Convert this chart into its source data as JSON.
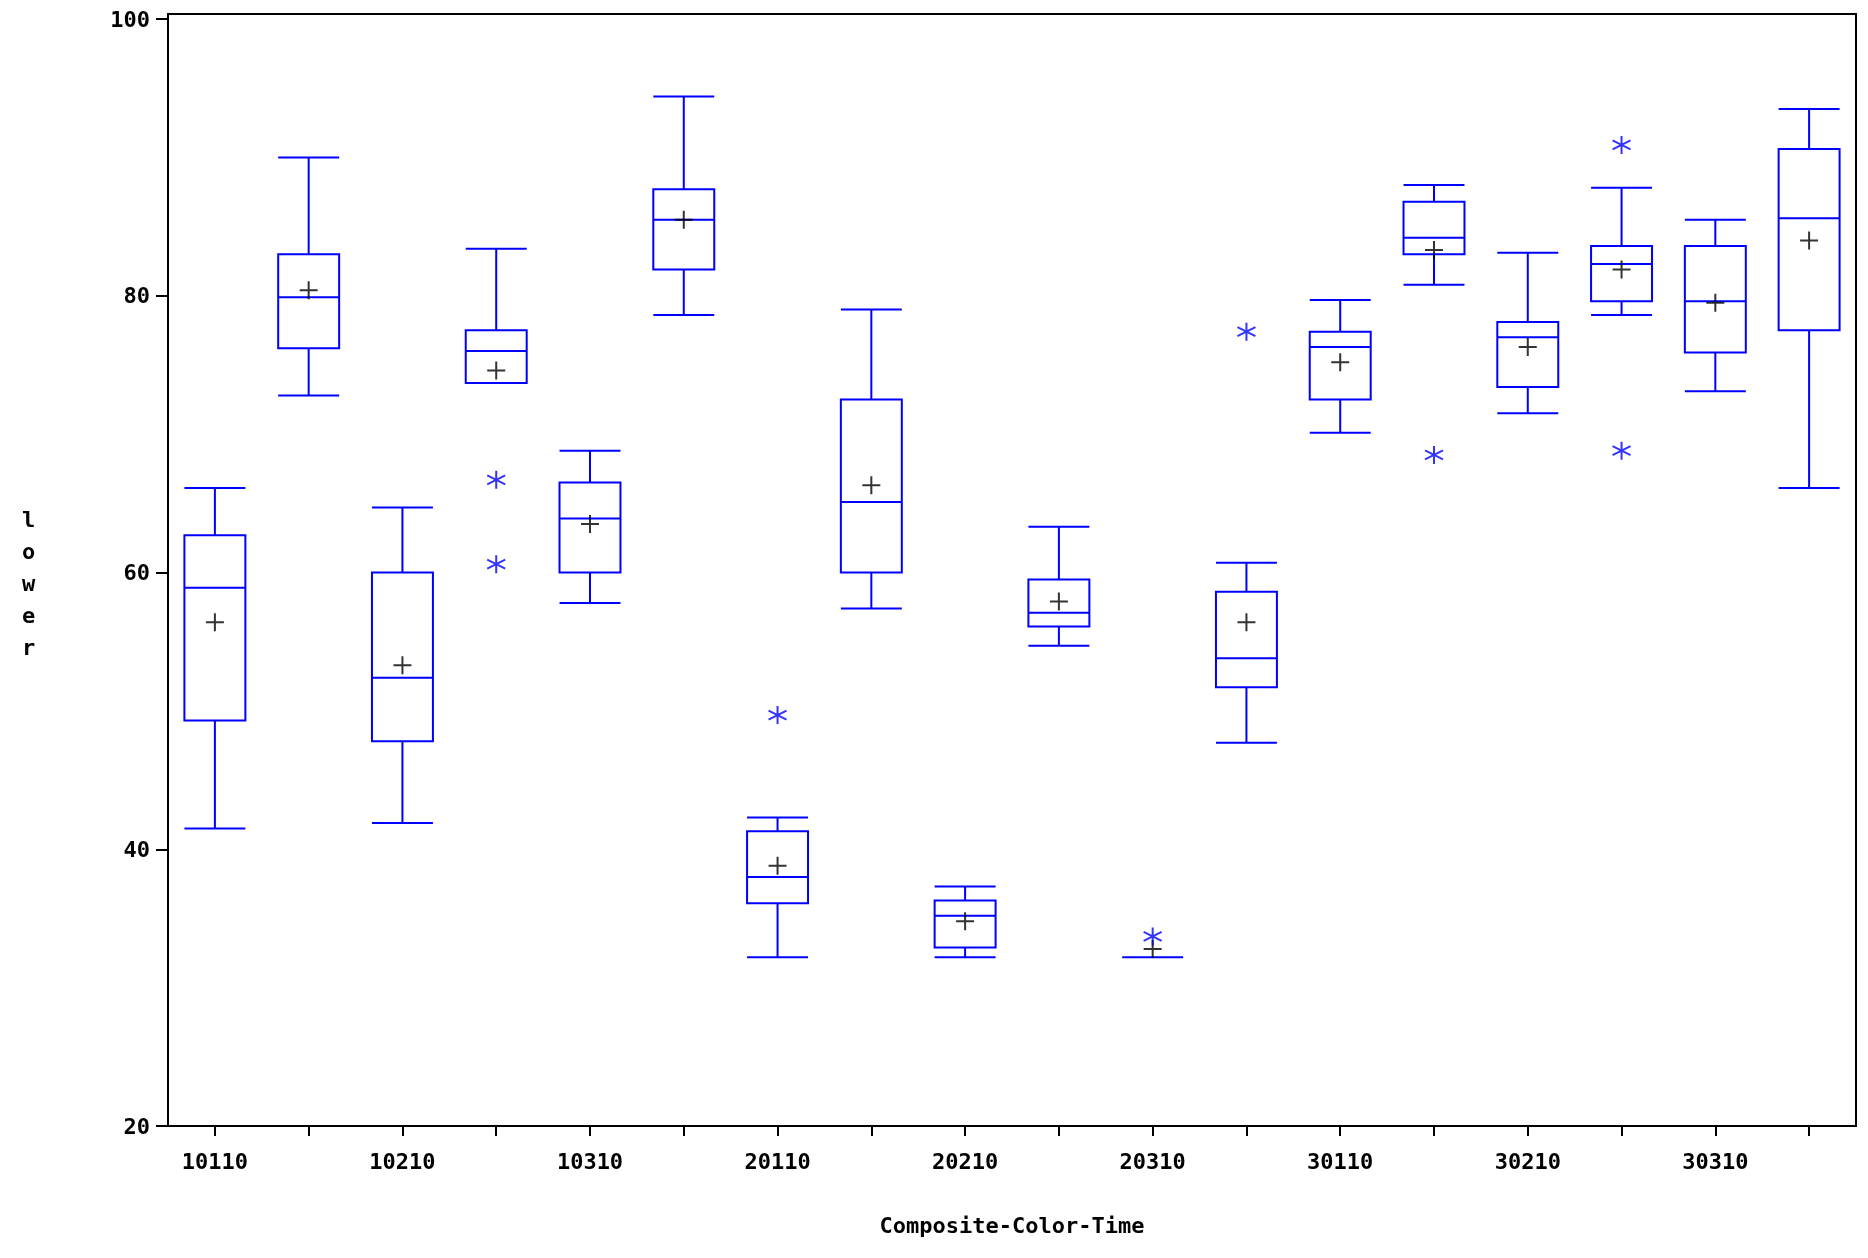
{
  "chart_data": {
    "type": "box",
    "xlabel": "Composite-Color-Time",
    "ylabel": "lower",
    "categories": [
      "10110",
      null,
      "10210",
      null,
      "10310",
      null,
      "20110",
      null,
      "20210",
      null,
      "20310",
      null,
      "30110",
      null,
      "30210",
      null,
      "30310",
      null
    ],
    "ylim": [
      20,
      100
    ],
    "yticks": [
      20,
      40,
      60,
      80,
      100
    ],
    "color": "#0000ff",
    "boxes": [
      {
        "low": 41.5,
        "q1": 49.3,
        "median": 58.9,
        "q3": 62.7,
        "high": 66.1,
        "mean": 56.4
      },
      {
        "low": 72.8,
        "q1": 76.2,
        "median": 79.9,
        "q3": 83.0,
        "high": 90.0,
        "mean": 80.4
      },
      {
        "low": 41.9,
        "q1": 47.8,
        "median": 52.4,
        "q3": 60.0,
        "high": 64.7,
        "mean": 53.3
      },
      {
        "low": 73.7,
        "q1": 73.7,
        "median": 76.0,
        "q3": 77.5,
        "high": 83.4,
        "mean": 74.6,
        "outliers": [
          66.7,
          60.6
        ]
      },
      {
        "low": 57.8,
        "q1": 60.0,
        "median": 63.9,
        "q3": 66.5,
        "high": 68.8,
        "mean": 63.5
      },
      {
        "low": 78.6,
        "q1": 81.9,
        "median": 85.5,
        "q3": 87.7,
        "high": 94.4,
        "mean": 85.5
      },
      {
        "low": 32.2,
        "q1": 36.1,
        "median": 38.0,
        "q3": 41.3,
        "high": 42.3,
        "mean": 38.8,
        "outliers": [
          49.7
        ]
      },
      {
        "low": 57.4,
        "q1": 60.0,
        "median": 65.1,
        "q3": 72.5,
        "high": 79.0,
        "mean": 66.3
      },
      {
        "low": 32.2,
        "q1": 32.9,
        "median": 35.2,
        "q3": 36.3,
        "high": 37.3,
        "mean": 34.8
      },
      {
        "low": 54.7,
        "q1": 56.1,
        "median": 57.1,
        "q3": 59.5,
        "high": 63.3,
        "mean": 57.9
      },
      {
        "low": 32.2,
        "q1": 32.2,
        "median": 32.2,
        "q3": 32.2,
        "high": 32.2,
        "mean": 32.8,
        "outliers": [
          33.7
        ]
      },
      {
        "low": 47.7,
        "q1": 51.7,
        "median": 53.8,
        "q3": 58.6,
        "high": 60.7,
        "mean": 56.4,
        "outliers": [
          77.4
        ]
      },
      {
        "low": 70.1,
        "q1": 72.5,
        "median": 76.3,
        "q3": 77.4,
        "high": 79.7,
        "mean": 75.2
      },
      {
        "low": 80.8,
        "q1": 83.0,
        "median": 84.2,
        "q3": 86.8,
        "high": 88.0,
        "mean": 83.3,
        "outliers": [
          68.5
        ]
      },
      {
        "low": 71.5,
        "q1": 73.4,
        "median": 77.0,
        "q3": 78.1,
        "high": 83.1,
        "mean": 76.3
      },
      {
        "low": 78.6,
        "q1": 79.6,
        "median": 82.3,
        "q3": 83.6,
        "high": 87.8,
        "mean": 81.9,
        "outliers": [
          90.9,
          68.8
        ]
      },
      {
        "low": 73.1,
        "q1": 75.9,
        "median": 79.6,
        "q3": 83.6,
        "high": 85.5,
        "mean": 79.5
      },
      {
        "low": 66.1,
        "q1": 77.5,
        "median": 85.6,
        "q3": 90.6,
        "high": 93.5,
        "mean": 84.0
      }
    ]
  }
}
